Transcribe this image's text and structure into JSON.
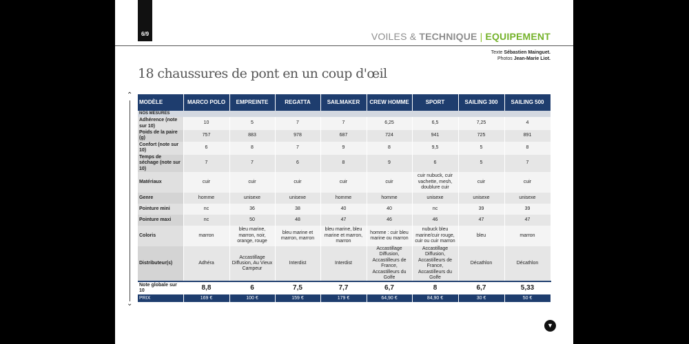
{
  "page": {
    "number": "6/9"
  },
  "header": {
    "part1": "VOILES",
    "amp": " & ",
    "part2": "TECHNIQUE",
    "sep": "|",
    "part3": "EQUIPEMENT"
  },
  "credits": {
    "text_label": "Texte ",
    "text_author": "Sébastien Mainguet.",
    "photo_label": "Photos ",
    "photo_author": "Jean-Marie Liot."
  },
  "title": "18 chaussures de pont en un coup d'œil",
  "nav": {
    "up_icon": "chevron-up-icon",
    "down_icon": "chevron-down-icon",
    "next_icon": "circle-chevron-down-icon"
  },
  "table": {
    "columns": [
      "MODÈLE",
      "MARCO POLO",
      "EMPREINTE",
      "REGATTA",
      "SAILMAKER",
      "CREW HOMME",
      "SPORT",
      "SAILING 300",
      "SAILING 500"
    ],
    "section": "NOS MESURES",
    "rows": [
      {
        "label": "Adhérence (note sur 10)",
        "values": [
          "10",
          "5",
          "7",
          "7",
          "6,25",
          "6,5",
          "7,25",
          "4"
        ]
      },
      {
        "label": "Poids de la paire (g)",
        "values": [
          "757",
          "883",
          "978",
          "687",
          "724",
          "941",
          "725",
          "891"
        ]
      },
      {
        "label": "Confort (note sur 10)",
        "values": [
          "6",
          "8",
          "7",
          "9",
          "8",
          "9,5",
          "5",
          "8"
        ]
      },
      {
        "label": "Temps de séchage (note sur 10)",
        "values": [
          "7",
          "7",
          "6",
          "8",
          "9",
          "6",
          "5",
          "7"
        ]
      },
      {
        "label": "Matériaux",
        "values": [
          "cuir",
          "cuir",
          "cuir",
          "cuir",
          "cuir",
          "cuir nubuck, cuir vachette, mesh, doublure cuir",
          "cuir",
          "cuir"
        ]
      },
      {
        "label": "Genre",
        "values": [
          "homme",
          "unisexe",
          "unisexe",
          "homme",
          "homme",
          "unisexe",
          "unisexe",
          "unisexe"
        ]
      },
      {
        "label": "Pointure mini",
        "values": [
          "nc",
          "36",
          "38",
          "40",
          "40",
          "nc",
          "39",
          "39"
        ]
      },
      {
        "label": "Pointure maxi",
        "values": [
          "nc",
          "50",
          "48",
          "47",
          "46",
          "46",
          "47",
          "47"
        ]
      },
      {
        "label": "Coloris",
        "values": [
          "marron",
          "bleu marine, marron, noir, orange, rouge",
          "bleu marine et marron, marron",
          "bleu marine, bleu marine et marron, marron",
          "homme : cuir bleu marine ou marron",
          "nubuck bleu marine/cuir rouge, cuir ou cuir marron",
          "bleu",
          "marron"
        ]
      },
      {
        "label": "Distributeur(s)",
        "values": [
          "Adhéra",
          "Accastillage Diffusion, Au Vieux Campeur",
          "Interdist",
          "Interdist",
          "Accastillage Diffusion, Accastilleurs de France, Accastilleurs du Golfe",
          "Accastillage Diffusion, Accastilleurs de France, Accastilleurs du Golfe",
          "Décathlon",
          "Décathlon"
        ]
      }
    ],
    "score": {
      "label": "Note globale sur 10",
      "values": [
        "8,8",
        "6",
        "7,5",
        "7,7",
        "6,7",
        "8",
        "6,7",
        "5,33"
      ]
    },
    "price": {
      "label": "PRIX",
      "values": [
        "169 €",
        "100 €",
        "159 €",
        "179 €",
        "64,90 €",
        "84,90 €",
        "30 €",
        "50 €"
      ]
    }
  }
}
